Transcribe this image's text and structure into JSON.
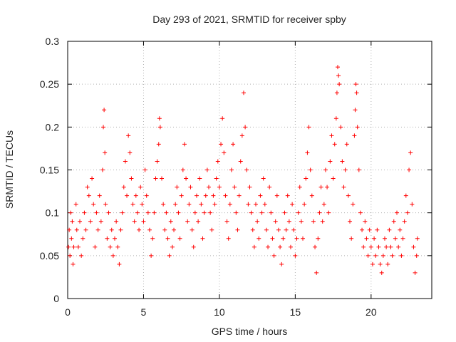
{
  "chart_data": {
    "type": "scatter",
    "title": "Day 293 of 2021, SRMTID for receiver spby",
    "xlabel": "GPS time / hours",
    "ylabel": "SRMTID / TECUs",
    "xlim": [
      0,
      24
    ],
    "ylim": [
      0,
      0.3
    ],
    "x_ticks": [
      0,
      5,
      10,
      15,
      20
    ],
    "x_tick_labels": [
      "0",
      "5",
      "10",
      "15",
      "20"
    ],
    "y_ticks": [
      0,
      0.05,
      0.1,
      0.15,
      0.2,
      0.25,
      0.3
    ],
    "y_tick_labels": [
      "0",
      "0.05",
      "0.1",
      "0.15",
      "0.2",
      "0.25",
      "0.3"
    ],
    "grid": true,
    "marker": "+",
    "color": "#ff0000",
    "series": [
      {
        "name": "SRMTID",
        "points": [
          [
            0.05,
            0.06
          ],
          [
            0.1,
            0.08
          ],
          [
            0.15,
            0.05
          ],
          [
            0.2,
            0.1
          ],
          [
            0.25,
            0.07
          ],
          [
            0.3,
            0.09
          ],
          [
            0.35,
            0.04
          ],
          [
            0.4,
            0.06
          ],
          [
            0.55,
            0.11
          ],
          [
            0.6,
            0.08
          ],
          [
            0.7,
            0.06
          ],
          [
            0.8,
            0.09
          ],
          [
            0.9,
            0.05
          ],
          [
            1.0,
            0.07
          ],
          [
            1.1,
            0.1
          ],
          [
            1.2,
            0.08
          ],
          [
            1.3,
            0.13
          ],
          [
            1.4,
            0.12
          ],
          [
            1.5,
            0.09
          ],
          [
            1.6,
            0.14
          ],
          [
            1.7,
            0.11
          ],
          [
            1.8,
            0.06
          ],
          [
            1.9,
            0.1
          ],
          [
            2.0,
            0.08
          ],
          [
            2.1,
            0.12
          ],
          [
            2.2,
            0.09
          ],
          [
            2.3,
            0.15
          ],
          [
            2.35,
            0.2
          ],
          [
            2.4,
            0.22
          ],
          [
            2.45,
            0.17
          ],
          [
            2.5,
            0.11
          ],
          [
            2.6,
            0.07
          ],
          [
            2.7,
            0.1
          ],
          [
            2.8,
            0.06
          ],
          [
            2.9,
            0.08
          ],
          [
            3.0,
            0.05
          ],
          [
            3.1,
            0.07
          ],
          [
            3.2,
            0.09
          ],
          [
            3.3,
            0.06
          ],
          [
            3.4,
            0.04
          ],
          [
            3.5,
            0.08
          ],
          [
            3.6,
            0.1
          ],
          [
            3.7,
            0.13
          ],
          [
            3.8,
            0.16
          ],
          [
            3.9,
            0.12
          ],
          [
            4.0,
            0.19
          ],
          [
            4.1,
            0.17
          ],
          [
            4.2,
            0.14
          ],
          [
            4.3,
            0.11
          ],
          [
            4.4,
            0.09
          ],
          [
            4.5,
            0.12
          ],
          [
            4.6,
            0.1
          ],
          [
            4.7,
            0.08
          ],
          [
            4.8,
            0.13
          ],
          [
            4.9,
            0.11
          ],
          [
            5.0,
            0.09
          ],
          [
            5.1,
            0.15
          ],
          [
            5.2,
            0.12
          ],
          [
            5.3,
            0.1
          ],
          [
            5.4,
            0.08
          ],
          [
            5.5,
            0.05
          ],
          [
            5.6,
            0.07
          ],
          [
            5.7,
            0.1
          ],
          [
            5.8,
            0.14
          ],
          [
            5.9,
            0.16
          ],
          [
            6.0,
            0.18
          ],
          [
            6.05,
            0.21
          ],
          [
            6.1,
            0.2
          ],
          [
            6.2,
            0.14
          ],
          [
            6.3,
            0.11
          ],
          [
            6.4,
            0.08
          ],
          [
            6.5,
            0.1
          ],
          [
            6.6,
            0.07
          ],
          [
            6.7,
            0.05
          ],
          [
            6.8,
            0.09
          ],
          [
            6.9,
            0.06
          ],
          [
            7.0,
            0.08
          ],
          [
            7.1,
            0.11
          ],
          [
            7.2,
            0.13
          ],
          [
            7.3,
            0.1
          ],
          [
            7.4,
            0.07
          ],
          [
            7.5,
            0.12
          ],
          [
            7.6,
            0.15
          ],
          [
            7.7,
            0.18
          ],
          [
            7.8,
            0.14
          ],
          [
            7.9,
            0.09
          ],
          [
            8.0,
            0.11
          ],
          [
            8.1,
            0.13
          ],
          [
            8.2,
            0.08
          ],
          [
            8.3,
            0.06
          ],
          [
            8.4,
            0.1
          ],
          [
            8.5,
            0.12
          ],
          [
            8.6,
            0.09
          ],
          [
            8.7,
            0.14
          ],
          [
            8.8,
            0.11
          ],
          [
            8.9,
            0.07
          ],
          [
            9.0,
            0.1
          ],
          [
            9.1,
            0.12
          ],
          [
            9.2,
            0.15
          ],
          [
            9.3,
            0.13
          ],
          [
            9.4,
            0.1
          ],
          [
            9.5,
            0.08
          ],
          [
            9.6,
            0.12
          ],
          [
            9.7,
            0.11
          ],
          [
            9.8,
            0.14
          ],
          [
            9.9,
            0.16
          ],
          [
            10.0,
            0.13
          ],
          [
            10.1,
            0.18
          ],
          [
            10.2,
            0.21
          ],
          [
            10.3,
            0.17
          ],
          [
            10.4,
            0.12
          ],
          [
            10.5,
            0.09
          ],
          [
            10.6,
            0.07
          ],
          [
            10.7,
            0.11
          ],
          [
            10.8,
            0.15
          ],
          [
            10.9,
            0.18
          ],
          [
            11.0,
            0.13
          ],
          [
            11.1,
            0.1
          ],
          [
            11.2,
            0.08
          ],
          [
            11.3,
            0.12
          ],
          [
            11.4,
            0.16
          ],
          [
            11.5,
            0.19
          ],
          [
            11.6,
            0.24
          ],
          [
            11.7,
            0.2
          ],
          [
            11.8,
            0.15
          ],
          [
            11.9,
            0.11
          ],
          [
            12.0,
            0.13
          ],
          [
            12.1,
            0.1
          ],
          [
            12.2,
            0.08
          ],
          [
            12.3,
            0.06
          ],
          [
            12.4,
            0.11
          ],
          [
            12.5,
            0.09
          ],
          [
            12.6,
            0.07
          ],
          [
            12.7,
            0.12
          ],
          [
            12.8,
            0.1
          ],
          [
            12.9,
            0.14
          ],
          [
            13.0,
            0.11
          ],
          [
            13.1,
            0.08
          ],
          [
            13.2,
            0.06
          ],
          [
            13.3,
            0.13
          ],
          [
            13.4,
            0.1
          ],
          [
            13.5,
            0.07
          ],
          [
            13.6,
            0.05
          ],
          [
            13.7,
            0.09
          ],
          [
            13.8,
            0.12
          ],
          [
            13.9,
            0.08
          ],
          [
            14.0,
            0.06
          ],
          [
            14.1,
            0.04
          ],
          [
            14.2,
            0.07
          ],
          [
            14.3,
            0.1
          ],
          [
            14.4,
            0.08
          ],
          [
            14.5,
            0.12
          ],
          [
            14.6,
            0.09
          ],
          [
            14.7,
            0.06
          ],
          [
            14.8,
            0.11
          ],
          [
            14.9,
            0.08
          ],
          [
            15.0,
            0.05
          ],
          [
            15.1,
            0.07
          ],
          [
            15.2,
            0.1
          ],
          [
            15.3,
            0.13
          ],
          [
            15.4,
            0.09
          ],
          [
            15.5,
            0.07
          ],
          [
            15.6,
            0.11
          ],
          [
            15.7,
            0.14
          ],
          [
            15.8,
            0.17
          ],
          [
            15.9,
            0.2
          ],
          [
            16.0,
            0.15
          ],
          [
            16.1,
            0.12
          ],
          [
            16.2,
            0.09
          ],
          [
            16.3,
            0.06
          ],
          [
            16.4,
            0.03
          ],
          [
            16.5,
            0.07
          ],
          [
            16.6,
            0.1
          ],
          [
            16.7,
            0.13
          ],
          [
            16.8,
            0.09
          ],
          [
            16.9,
            0.11
          ],
          [
            17.0,
            0.15
          ],
          [
            17.1,
            0.13
          ],
          [
            17.2,
            0.1
          ],
          [
            17.3,
            0.16
          ],
          [
            17.4,
            0.19
          ],
          [
            17.5,
            0.14
          ],
          [
            17.6,
            0.18
          ],
          [
            17.7,
            0.21
          ],
          [
            17.75,
            0.24
          ],
          [
            17.8,
            0.27
          ],
          [
            17.85,
            0.26
          ],
          [
            17.9,
            0.25
          ],
          [
            18.0,
            0.2
          ],
          [
            18.1,
            0.16
          ],
          [
            18.2,
            0.13
          ],
          [
            18.3,
            0.15
          ],
          [
            18.4,
            0.18
          ],
          [
            18.5,
            0.12
          ],
          [
            18.6,
            0.09
          ],
          [
            18.7,
            0.07
          ],
          [
            18.8,
            0.11
          ],
          [
            18.9,
            0.19
          ],
          [
            18.95,
            0.22
          ],
          [
            19.0,
            0.25
          ],
          [
            19.05,
            0.24
          ],
          [
            19.1,
            0.2
          ],
          [
            19.2,
            0.15
          ],
          [
            19.3,
            0.1
          ],
          [
            19.4,
            0.08
          ],
          [
            19.5,
            0.06
          ],
          [
            19.6,
            0.09
          ],
          [
            19.7,
            0.07
          ],
          [
            19.8,
            0.05
          ],
          [
            19.9,
            0.08
          ],
          [
            20.0,
            0.06
          ],
          [
            20.1,
            0.04
          ],
          [
            20.2,
            0.07
          ],
          [
            20.3,
            0.05
          ],
          [
            20.4,
            0.08
          ],
          [
            20.5,
            0.06
          ],
          [
            20.6,
            0.04
          ],
          [
            20.7,
            0.03
          ],
          [
            20.8,
            0.05
          ],
          [
            20.9,
            0.07
          ],
          [
            21.0,
            0.06
          ],
          [
            21.1,
            0.04
          ],
          [
            21.2,
            0.08
          ],
          [
            21.3,
            0.06
          ],
          [
            21.4,
            0.05
          ],
          [
            21.5,
            0.09
          ],
          [
            21.6,
            0.07
          ],
          [
            21.7,
            0.1
          ],
          [
            21.8,
            0.06
          ],
          [
            21.9,
            0.08
          ],
          [
            22.0,
            0.05
          ],
          [
            22.1,
            0.07
          ],
          [
            22.2,
            0.09
          ],
          [
            22.3,
            0.12
          ],
          [
            22.4,
            0.1
          ],
          [
            22.5,
            0.15
          ],
          [
            22.6,
            0.17
          ],
          [
            22.7,
            0.11
          ],
          [
            22.8,
            0.06
          ],
          [
            22.9,
            0.03
          ],
          [
            23.0,
            0.05
          ],
          [
            23.05,
            0.07
          ]
        ]
      }
    ]
  }
}
